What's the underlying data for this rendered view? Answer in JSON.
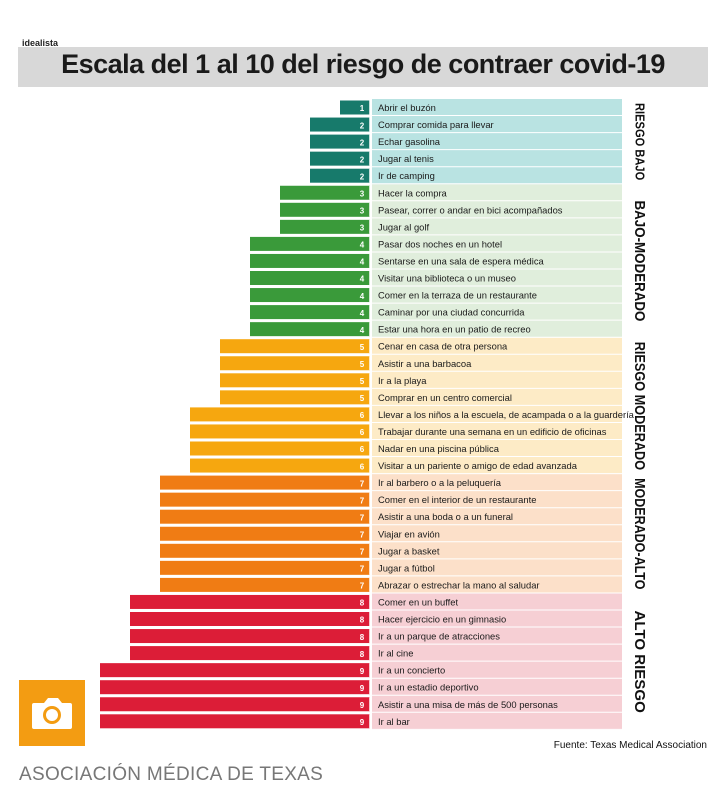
{
  "brand": "idealista",
  "caption": "ASOCIACIÓN MÉDICA DE TEXAS",
  "camera_icon": "camera-icon",
  "chart_data": {
    "type": "bar",
    "orientation": "horizontal",
    "title": "Escala del 1 al 10 del riesgo de contraer covid-19",
    "source": "Fuente: Texas Medical Association",
    "categories": [
      "Abrir el buzón",
      "Comprar comida para llevar",
      "Echar gasolina",
      "Jugar al tenis",
      "Ir de camping",
      "Hacer la compra",
      "Pasear, correr o andar en bici acompañados",
      "Jugar al golf",
      "Pasar dos noches en un hotel",
      "Sentarse en una sala de espera médica",
      "Visitar una biblioteca o un museo",
      "Comer en la terraza de un restaurante",
      "Caminar por una ciudad concurrida",
      "Estar una hora en un patio de recreo",
      "Cenar en casa de otra persona",
      "Asistir a una barbacoa",
      "Ir a la playa",
      "Comprar en un centro comercial",
      "Llevar a los niños a la escuela, de acampada o a la guardería",
      "Trabajar durante una semana en un edificio de oficinas",
      "Nadar en una piscina pública",
      "Visitar a un pariente o amigo de edad avanzada",
      "Ir al barbero o a la peluquería",
      "Comer en el interior de un restaurante",
      "Asistir a una boda o a un funeral",
      "Viajar en avión",
      "Jugar a basket",
      "Jugar a fútbol",
      "Abrazar o estrechar la mano al saludar",
      "Comer en un buffet",
      "Hacer ejercicio en un gimnasio",
      "Ir a un parque de atracciones",
      "Ir al cine",
      "Ir a un concierto",
      "Ir a un estadio deportivo",
      "Asistir a una misa de más de 500 personas",
      "Ir al bar"
    ],
    "values": [
      1,
      2,
      2,
      2,
      2,
      3,
      3,
      3,
      4,
      4,
      4,
      4,
      4,
      4,
      5,
      5,
      5,
      5,
      6,
      6,
      6,
      6,
      7,
      7,
      7,
      7,
      7,
      7,
      7,
      8,
      8,
      8,
      8,
      9,
      9,
      9,
      9
    ],
    "groups": [
      {
        "label": "RIESGO BAJO",
        "start": 0,
        "end": 4,
        "bar_color": "#177a6b",
        "band_color": "#b9e3e2"
      },
      {
        "label": "BAJO-MODERADO",
        "start": 5,
        "end": 13,
        "bar_color": "#3a9a3a",
        "band_color": "#e0eedc"
      },
      {
        "label": "RIESGO MODERADO",
        "start": 14,
        "end": 21,
        "bar_color": "#f6a70f",
        "band_color": "#fdebc6"
      },
      {
        "label": "MODERADO-ALTO",
        "start": 22,
        "end": 28,
        "bar_color": "#f07c14",
        "band_color": "#fce0c9"
      },
      {
        "label": "ALTO RIESGO",
        "start": 29,
        "end": 36,
        "bar_color": "#dc1d37",
        "band_color": "#f6cfd4"
      }
    ],
    "level_colors": {
      "1": "#177a6b",
      "2": "#177a6b",
      "3": "#3a9a3a",
      "4": "#3a9a3a",
      "5": "#f6a70f",
      "6": "#f6a70f",
      "7": "#f07c14",
      "8": "#dc1d37",
      "9": "#dc1d37"
    },
    "xlim": [
      0,
      10
    ],
    "grid": false,
    "legend": "none"
  }
}
